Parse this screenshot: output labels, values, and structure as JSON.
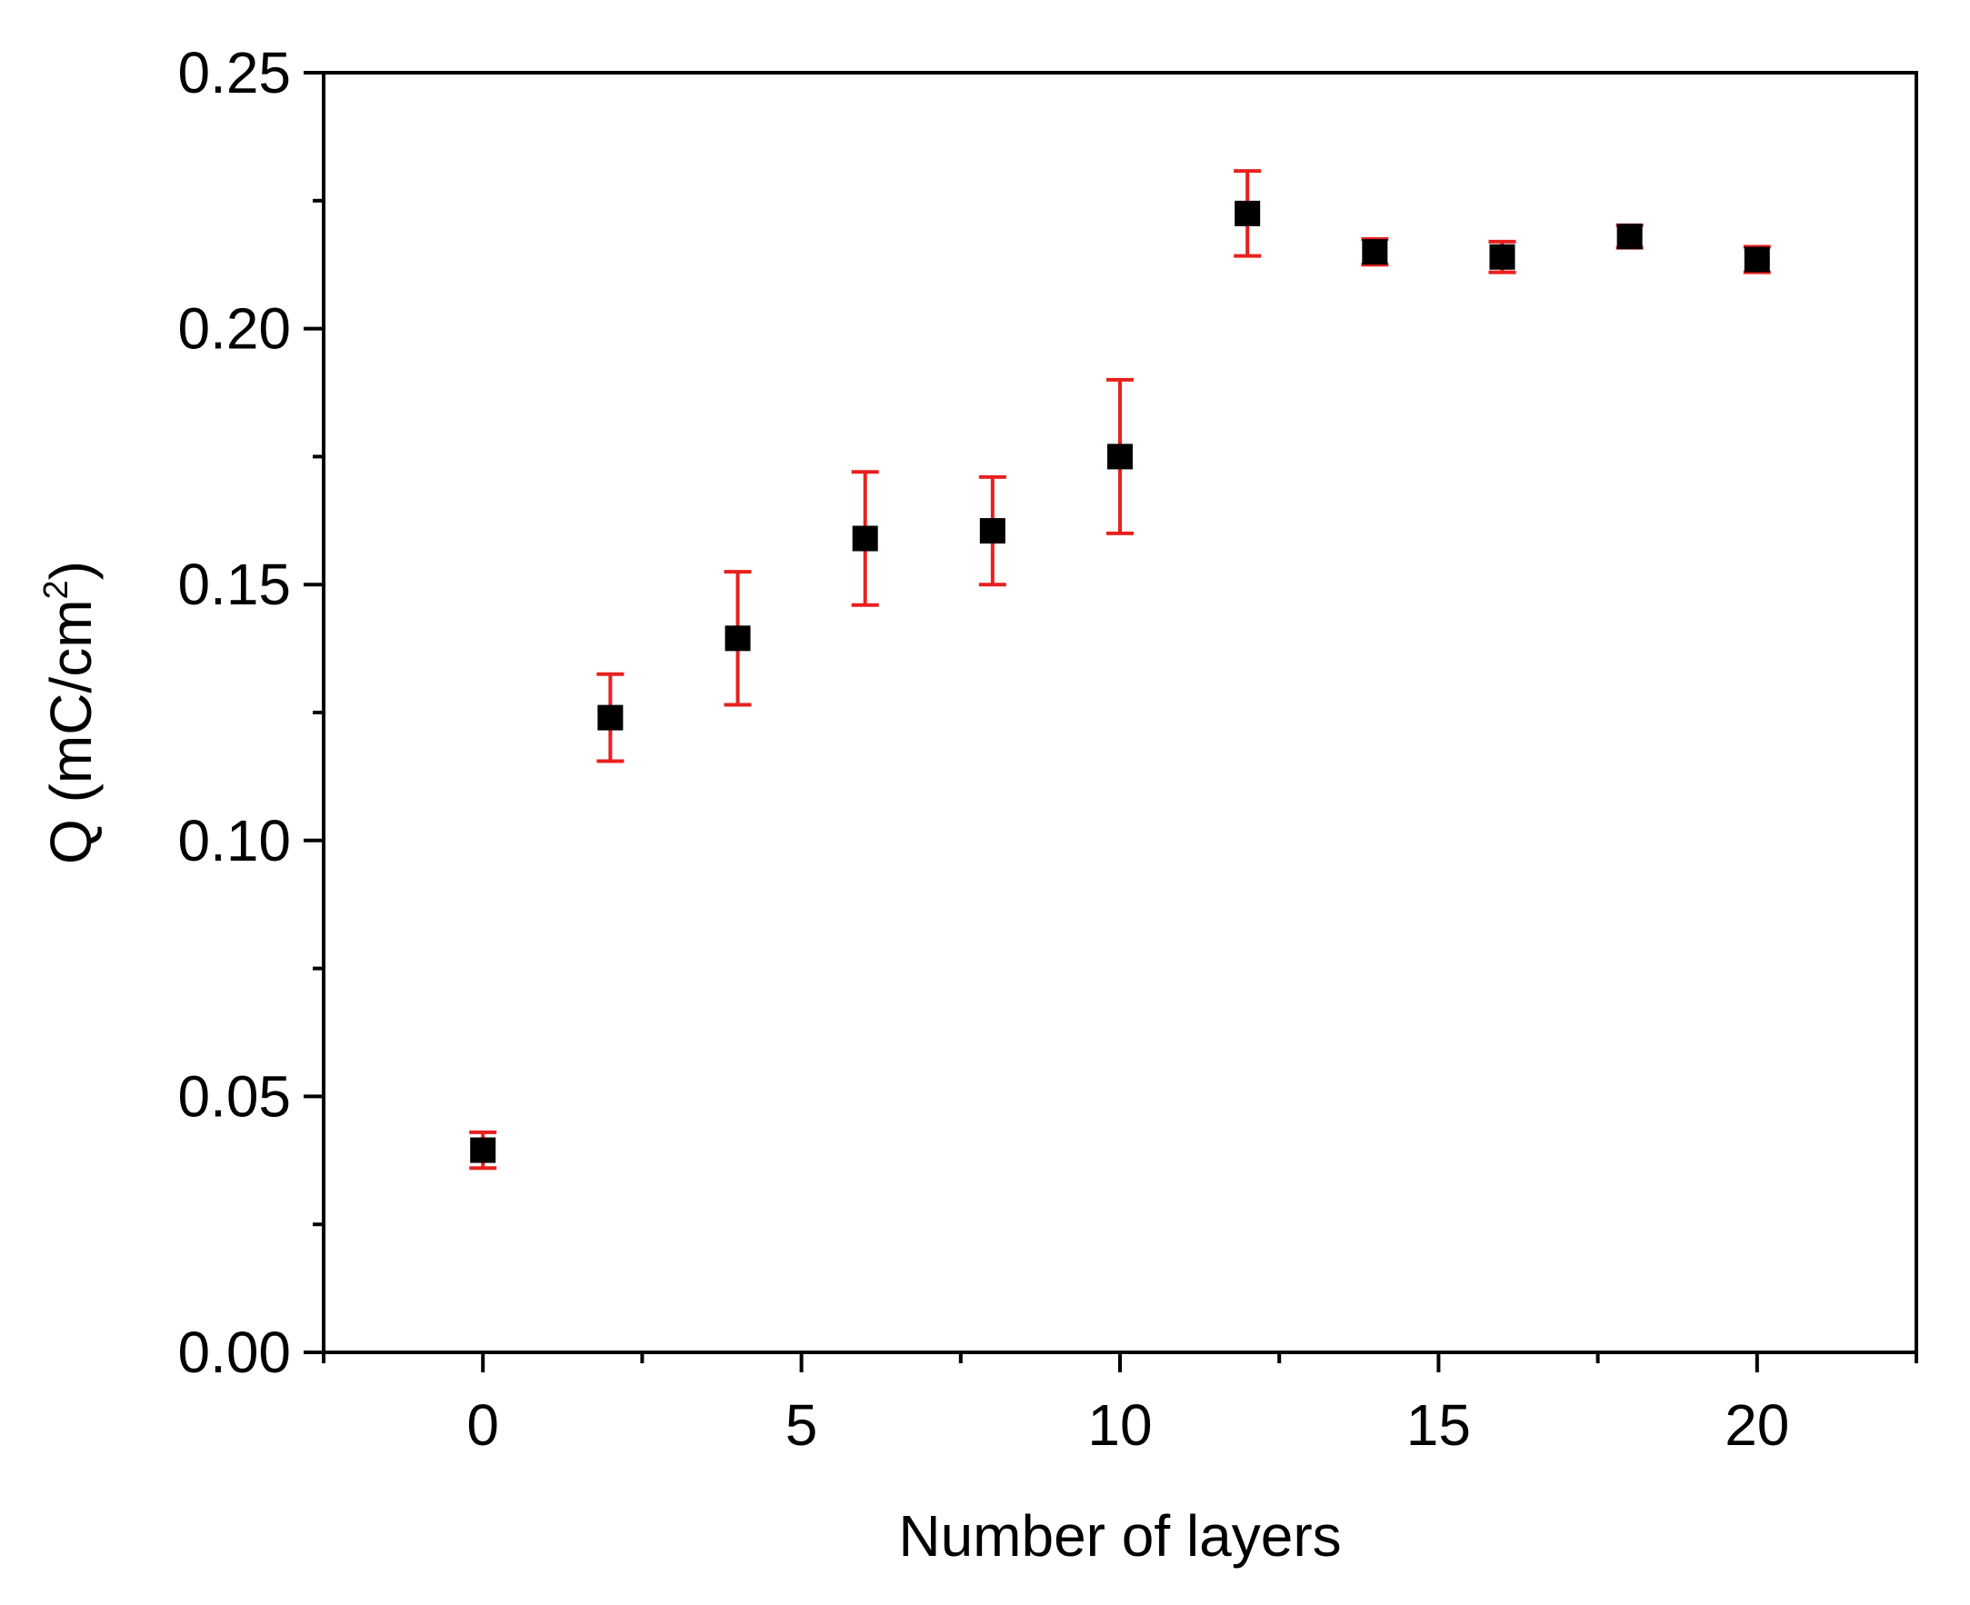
{
  "chart_data": {
    "type": "scatter",
    "title": "",
    "xlabel": "Number of layers",
    "ylabel_main": "Q (mC/cm",
    "ylabel_sup": "2",
    "ylabel_end": ")",
    "xlim": [
      -2.5,
      22.5
    ],
    "ylim": [
      0.0,
      0.25
    ],
    "x_ticks": [
      0,
      5,
      10,
      15,
      20
    ],
    "x_tick_labels": [
      "0",
      "5",
      "10",
      "15",
      "20"
    ],
    "x_minor_ticks": [
      -2.5,
      2.5,
      7.5,
      12.5,
      17.5,
      22.5
    ],
    "y_ticks": [
      0.0,
      0.05,
      0.1,
      0.15,
      0.2,
      0.25
    ],
    "y_tick_labels": [
      "0.00",
      "0.05",
      "0.10",
      "0.15",
      "0.20",
      "0.25"
    ],
    "y_minor_ticks": [
      0.025,
      0.075,
      0.125,
      0.175,
      0.225
    ],
    "grid": false,
    "series": [
      {
        "points": [
          {
            "x": 0,
            "y": 0.0395,
            "err": 0.0035
          },
          {
            "x": 2,
            "y": 0.124,
            "err": 0.0085
          },
          {
            "x": 4,
            "y": 0.1395,
            "err": 0.013
          },
          {
            "x": 6,
            "y": 0.159,
            "err": 0.013
          },
          {
            "x": 8,
            "y": 0.1605,
            "err": 0.0105
          },
          {
            "x": 10,
            "y": 0.175,
            "err": 0.015
          },
          {
            "x": 12,
            "y": 0.2225,
            "err": 0.0083
          },
          {
            "x": 14,
            "y": 0.215,
            "err": 0.0025
          },
          {
            "x": 16,
            "y": 0.214,
            "err": 0.003
          },
          {
            "x": 18,
            "y": 0.218,
            "err": 0.0022
          },
          {
            "x": 20,
            "y": 0.2135,
            "err": 0.0025
          }
        ]
      }
    ],
    "colors": {
      "marker": "#000000",
      "error_bar": "#e8201e",
      "axis": "#000000"
    }
  }
}
